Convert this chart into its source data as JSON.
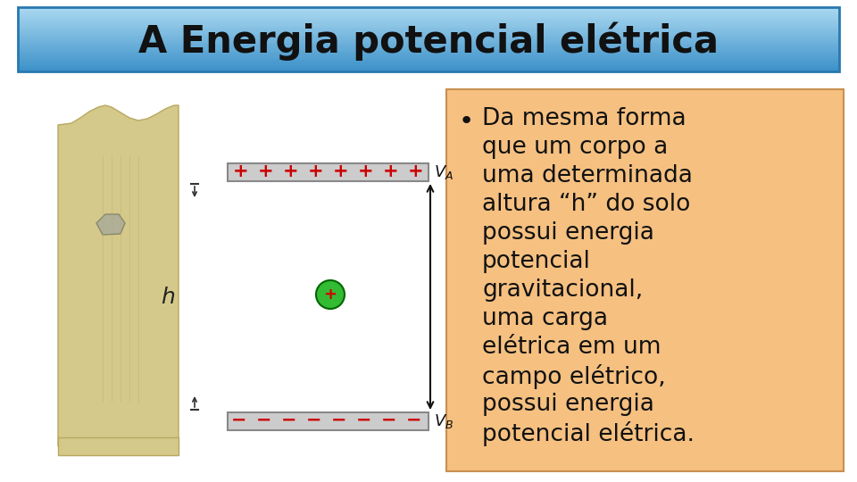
{
  "title": "A Energia potencial elétrica",
  "title_bg_color": "#5fb8e8",
  "title_text_color": "#111111",
  "bullet_text_lines": [
    "Da mesma forma",
    "que um corpo a",
    "uma determinada",
    "altura “h” do solo",
    "possui energia",
    "potencial",
    "gravitacional,",
    "uma carga",
    "elétrica em um",
    "campo elétrico,",
    "possui energia",
    "potencial elétrica."
  ],
  "bullet_bg_color": "#f5c080",
  "body_bg_color": "#ffffff",
  "plus_color": "#cc0000",
  "minus_color": "#cc0000",
  "arrow_color": "#111111",
  "charge_color": "#33bb33",
  "charge_edge_color": "#006600",
  "charge_plus_color": "#cc0000",
  "font_size_title": 30,
  "font_size_bullet": 19,
  "font_size_labels": 13,
  "font_size_plate": 15,
  "font_size_h": 15,
  "cliff_color": "#d4c98a",
  "cliff_edge_color": "#b8a860",
  "rock_color": "#aaaaaa",
  "rock_edge_color": "#777777",
  "plate_color": "#cccccc",
  "plate_edge_color": "#888888"
}
